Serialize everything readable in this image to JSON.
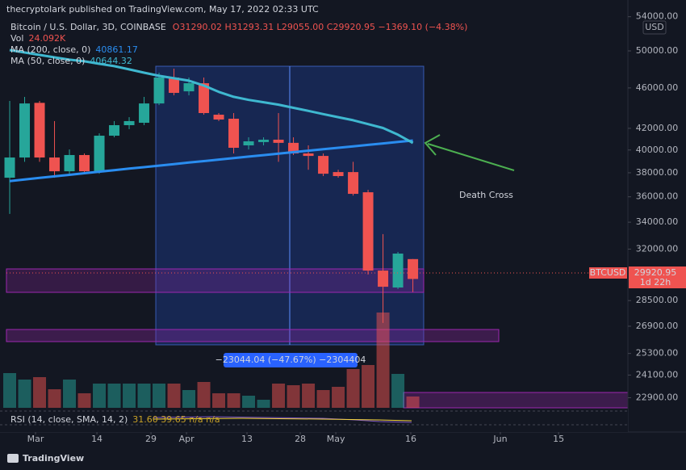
{
  "header": "thecryptolark published on TradingView.com, May 17, 2022 02:33 UTC",
  "footer": "TradingView",
  "chart_data": {
    "type": "candlestick",
    "symbol": "Bitcoin / U.S. Dollar, 3D, COINBASE",
    "quote": "O31290.02 H31293.31 L29055.00 C29920.95 −1369.10 (−4.38%)",
    "volume_name": "Vol",
    "volume_value_label": "24.092K",
    "categories": [
      null,
      null,
      null,
      null,
      null,
      null,
      null,
      null,
      null,
      null,
      null,
      null,
      null,
      null,
      null,
      null,
      null,
      null,
      null,
      null,
      null,
      null,
      null,
      null,
      null,
      null,
      null,
      null
    ],
    "open": [
      37580,
      39330,
      44480,
      39330,
      38130,
      39550,
      38130,
      41310,
      42300,
      42530,
      44420,
      47090,
      45650,
      46490,
      43310,
      42920,
      40420,
      40720,
      40940,
      40650,
      39690,
      39470,
      38060,
      38060,
      36370,
      30490,
      29350,
      31290.02
    ],
    "high": [
      44670,
      45080,
      44670,
      42690,
      40050,
      39690,
      41530,
      42690,
      43070,
      45080,
      47605,
      48040,
      47090,
      47090,
      43470,
      43470,
      41160,
      41160,
      43470,
      41160,
      40420,
      39690,
      38260,
      38950,
      36570,
      33100,
      31800,
      31293.31
    ],
    "low": [
      34640,
      38950,
      38950,
      37580,
      37920,
      37920,
      37920,
      41160,
      41920,
      42300,
      44260,
      45240,
      45240,
      43310,
      42690,
      39690,
      40050,
      40420,
      38950,
      39550,
      38260,
      37720,
      37580,
      36100,
      30220,
      27100,
      29250,
      29055.0
    ],
    "close": [
      39330,
      44420,
      39330,
      38130,
      39550,
      38130,
      41310,
      42300,
      42690,
      44420,
      47090,
      45490,
      46490,
      43470,
      42840,
      40200,
      40790,
      40940,
      40650,
      39690,
      39470,
      37920,
      37720,
      36240,
      30490,
      29400,
      31680,
      29920.95
    ],
    "up_color": "#26a69a",
    "down_color": "#ef5350",
    "volume": [
      73960,
      60200,
      65360,
      39560,
      60200,
      30960,
      51600,
      51600,
      51600,
      51600,
      51600,
      51600,
      37840,
      55040,
      30960,
      30960,
      25800,
      17200,
      51600,
      48160,
      51600,
      37840,
      44720,
      82560,
      91160,
      202960,
      72240,
      24092
    ],
    "series": [
      {
        "name": "MA (200, close, 0)",
        "value_label": "40861.17",
        "color": "#2a8df0",
        "values": [
          37300,
          37432,
          37564,
          37696,
          37828,
          37960,
          38091,
          38223,
          38355,
          38487,
          38619,
          38751,
          38883,
          39015,
          39147,
          39279,
          39411,
          39543,
          39675,
          39806,
          39938,
          40070,
          40202,
          40334,
          40466,
          40598,
          40730,
          40861.17
        ]
      },
      {
        "name": "MA (50, close, 0)",
        "value_label": "40644.32",
        "color": "#3fb8d0",
        "values": [
          50090,
          49820,
          49550,
          49280,
          49020,
          48840,
          48570,
          48310,
          47960,
          47610,
          47270,
          47010,
          46760,
          46250,
          45590,
          45090,
          44780,
          44540,
          44300,
          43990,
          43680,
          43370,
          43070,
          42770,
          42400,
          42030,
          41400,
          40644.32
        ]
      }
    ],
    "log_scale": true,
    "ylim": [
      56070,
      22386
    ],
    "yticks": [
      {
        "value": 54000,
        "label": "54000.00"
      },
      {
        "value": 50000,
        "label": "50000.00"
      },
      {
        "value": 46000,
        "label": "46000.00"
      },
      {
        "value": 42000,
        "label": "42000.00"
      },
      {
        "value": 40000,
        "label": "40000.00"
      },
      {
        "value": 38000,
        "label": "38000.00"
      },
      {
        "value": 36000,
        "label": "36000.00"
      },
      {
        "value": 34000,
        "label": "34000.00"
      },
      {
        "value": 32000,
        "label": "32000.00"
      },
      {
        "value": 28500,
        "label": "28500.00"
      },
      {
        "value": 26900,
        "label": "26900.00"
      },
      {
        "value": 25300,
        "label": "25300.00"
      },
      {
        "value": 24100,
        "label": "24100.00"
      },
      {
        "value": 22900,
        "label": "22900.00"
      }
    ],
    "xlim": [
      -0.65,
      41.4
    ],
    "xticks": [
      {
        "value": 1.73,
        "label": "Mar"
      },
      {
        "value": 5.84,
        "label": "14"
      },
      {
        "value": 9.46,
        "label": "29"
      },
      {
        "value": 11.84,
        "label": "Apr"
      },
      {
        "value": 15.89,
        "label": "13"
      },
      {
        "value": 19.46,
        "label": "28"
      },
      {
        "value": 21.84,
        "label": "May"
      },
      {
        "value": 26.86,
        "label": "16"
      },
      {
        "value": 32.86,
        "label": "Jun"
      },
      {
        "value": 36.76,
        "label": "15"
      }
    ],
    "currency": "USD",
    "price_tag": {
      "symbol": "BTCUSD",
      "price": "29920.95",
      "countdown": "1d 22h"
    },
    "measure_label": "−23044.04 (−47.67%) −2304404",
    "annotation": "Death Cross",
    "rsi_label": "RSI (14, close, SMA, 14, 2)",
    "rsi_values": "31.60 39.65 n/a n/a"
  }
}
